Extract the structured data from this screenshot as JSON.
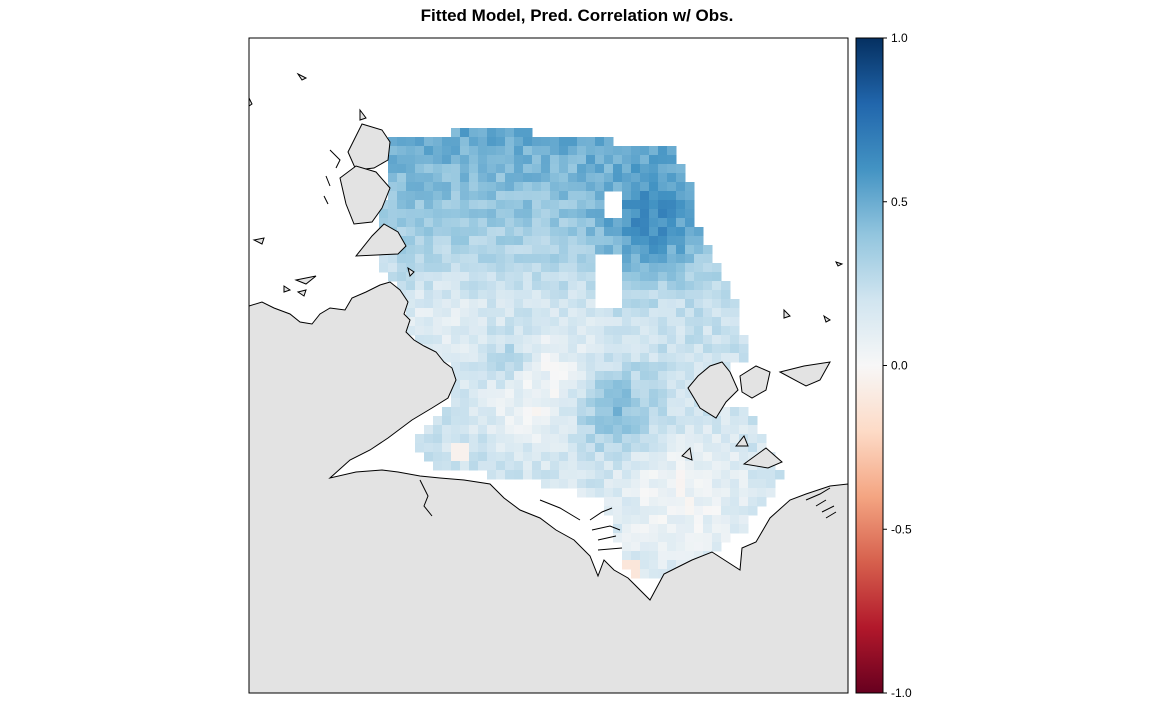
{
  "title": "Fitted Model, Pred. Correlation w/ Obs.",
  "colors": {
    "land": "#e3e3e3",
    "coast": "#000000",
    "frame": "#000000",
    "ramp": [
      "#67001f",
      "#b2182b",
      "#d6604d",
      "#f4a582",
      "#fddbc7",
      "#f7f7f7",
      "#d1e5f0",
      "#92c5de",
      "#4393c3",
      "#2166ac",
      "#053061"
    ]
  },
  "colorbar": {
    "min": -1.0,
    "max": 1.0,
    "ticks": [
      {
        "value": 1.0,
        "label": "1.0"
      },
      {
        "value": 0.5,
        "label": "0.5"
      },
      {
        "value": 0.0,
        "label": "0.0"
      },
      {
        "value": -0.5,
        "label": "-0.5"
      },
      {
        "value": -1.0,
        "label": "-1.0"
      }
    ]
  }
}
